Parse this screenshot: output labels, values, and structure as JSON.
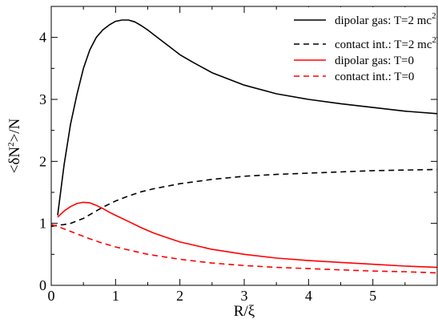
{
  "chart_data": {
    "type": "line",
    "xlabel": "R/ξ",
    "ylabel_parts": [
      "<δN",
      "2",
      ">/N"
    ],
    "xlim": [
      0,
      6
    ],
    "ylim": [
      0,
      4.5
    ],
    "x_ticks": [
      0,
      1,
      2,
      3,
      4,
      5
    ],
    "y_ticks": [
      0,
      1,
      2,
      3,
      4
    ],
    "legend_position": "top-right",
    "series": [
      {
        "name": "dipolar gas: T=2 mc",
        "name_sup": "2",
        "color": "#000000",
        "dash": "solid",
        "x": [
          0.1,
          0.2,
          0.3,
          0.4,
          0.5,
          0.6,
          0.7,
          0.8,
          0.9,
          1.0,
          1.1,
          1.2,
          1.3,
          1.4,
          1.5,
          1.6,
          1.8,
          2.0,
          2.2,
          2.5,
          3.0,
          3.5,
          4.0,
          4.5,
          5.0,
          5.5,
          6.0
        ],
        "y": [
          1.13,
          1.95,
          2.6,
          3.08,
          3.5,
          3.8,
          4.0,
          4.12,
          4.2,
          4.26,
          4.28,
          4.28,
          4.25,
          4.19,
          4.12,
          4.04,
          3.88,
          3.72,
          3.6,
          3.43,
          3.23,
          3.09,
          3.0,
          2.93,
          2.87,
          2.81,
          2.77
        ]
      },
      {
        "name": "contact int.: T=2 mc",
        "name_sup": "2",
        "color": "#000000",
        "dash": "dashed",
        "x": [
          0.0,
          0.1,
          0.2,
          0.3,
          0.4,
          0.5,
          0.6,
          0.7,
          0.8,
          0.9,
          1.0,
          1.2,
          1.4,
          1.6,
          1.8,
          2.0,
          2.5,
          3.0,
          3.5,
          4.0,
          4.5,
          5.0,
          5.5,
          6.0
        ],
        "y": [
          0.95,
          0.97,
          0.98,
          1.0,
          1.04,
          1.08,
          1.14,
          1.2,
          1.26,
          1.31,
          1.36,
          1.44,
          1.51,
          1.56,
          1.6,
          1.64,
          1.71,
          1.76,
          1.79,
          1.81,
          1.83,
          1.85,
          1.86,
          1.87
        ]
      },
      {
        "name": "dipolar gas: T=0",
        "name_sup": "",
        "color": "#ff0000",
        "dash": "solid",
        "x": [
          0.1,
          0.2,
          0.3,
          0.4,
          0.5,
          0.6,
          0.7,
          0.8,
          0.9,
          1.0,
          1.2,
          1.4,
          1.6,
          1.8,
          2.0,
          2.5,
          3.0,
          3.5,
          4.0,
          4.5,
          5.0,
          5.5,
          6.0
        ],
        "y": [
          1.1,
          1.2,
          1.27,
          1.32,
          1.34,
          1.33,
          1.29,
          1.24,
          1.18,
          1.13,
          1.03,
          0.93,
          0.84,
          0.77,
          0.7,
          0.58,
          0.5,
          0.44,
          0.4,
          0.37,
          0.34,
          0.31,
          0.29
        ]
      },
      {
        "name": "contact int.: T=0",
        "name_sup": "",
        "color": "#ff0000",
        "dash": "dashed",
        "x": [
          0.0,
          0.1,
          0.2,
          0.3,
          0.4,
          0.5,
          0.6,
          0.8,
          1.0,
          1.2,
          1.5,
          2.0,
          2.5,
          3.0,
          3.5,
          4.0,
          4.5,
          5.0,
          5.5,
          6.0
        ],
        "y": [
          0.98,
          0.95,
          0.91,
          0.87,
          0.83,
          0.79,
          0.75,
          0.68,
          0.62,
          0.57,
          0.5,
          0.42,
          0.36,
          0.32,
          0.29,
          0.27,
          0.25,
          0.23,
          0.22,
          0.2
        ]
      }
    ]
  }
}
